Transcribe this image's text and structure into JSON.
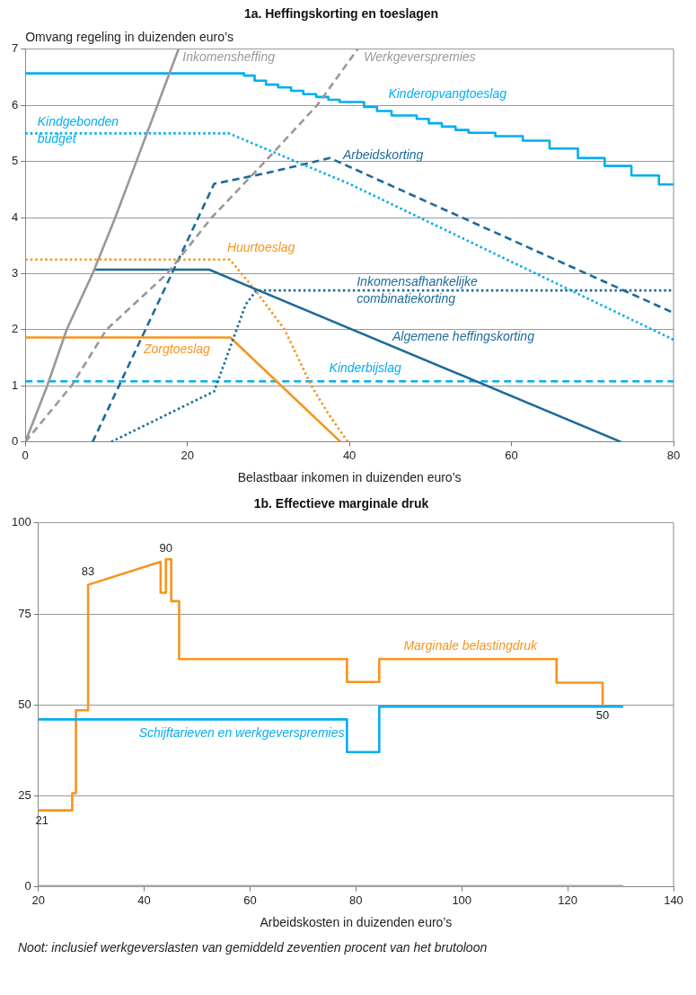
{
  "chart_data": [
    {
      "type": "line",
      "title": "1a. Heffingskorting en toeslagen",
      "ylabel": "Omvang regeling in duizenden euro’s",
      "xlabel": "Belastbaar inkomen in duizenden euro’s",
      "xlim": [
        0,
        80
      ],
      "xticks": [
        0,
        20,
        40,
        60,
        80
      ],
      "ylim": [
        0,
        7
      ],
      "yticks": [
        0,
        1,
        2,
        3,
        4,
        5,
        6,
        7
      ],
      "grid": "y",
      "marker": "none",
      "series": [
        {
          "name": "Inkomensheffing",
          "color": "#999999",
          "line_style": "solid",
          "x": [
            0,
            2.7,
            5.1,
            8.3,
            11.1,
            13.7,
            16.3,
            18.9
          ],
          "values": [
            0,
            1,
            2,
            3,
            4,
            5,
            6,
            7
          ]
        },
        {
          "name": "Werkgeverspremies",
          "color": "#999999",
          "line_style": "dashed",
          "x": [
            0,
            5.7,
            10,
            17.5,
            23,
            29.6,
            36,
            41
          ],
          "values": [
            0,
            1,
            2,
            3,
            4,
            5,
            6,
            7
          ]
        },
        {
          "name": "Kinderopvangtoeslag",
          "type": "step",
          "color": "#00aeef",
          "line_style": "solid",
          "x": [
            0,
            27,
            28.3,
            29.7,
            31.2,
            32.8,
            34.3,
            35.9,
            37.4,
            38.8,
            41.8,
            43.4,
            45.2,
            48.3,
            49.8,
            51.4,
            53.1,
            54.7,
            58,
            61.4,
            64.7,
            68.2,
            71.5,
            74.8,
            78.2,
            80
          ],
          "values": [
            6.57,
            6.53,
            6.44,
            6.37,
            6.32,
            6.26,
            6.2,
            6.15,
            6.1,
            6.06,
            5.97,
            5.9,
            5.82,
            5.76,
            5.68,
            5.62,
            5.56,
            5.51,
            5.45,
            5.37,
            5.23,
            5.06,
            4.92,
            4.75,
            4.59,
            4.59
          ]
        },
        {
          "name": "Kindgebonden budget",
          "color": "#00aeef",
          "line_style": "dotted",
          "x": [
            0,
            25.1,
            40,
            80
          ],
          "values": [
            5.5,
            5.5,
            4.6,
            1.82
          ]
        },
        {
          "name": "Arbeidskorting",
          "color": "#1d6a99",
          "line_style": "dashed",
          "x": [
            8.3,
            23.3,
            30,
            37.6,
            80
          ],
          "values": [
            0,
            4.6,
            4.8,
            5.06,
            2.3
          ]
        },
        {
          "name": "Algemene heffingskorting",
          "color": "#1d6a99",
          "line_style": "solid",
          "x": [
            8.5,
            22.7,
            73.5
          ],
          "values": [
            3.07,
            3.07,
            0
          ]
        },
        {
          "name": "Inkomensafhankelijke combinatiekorting",
          "color": "#1d6a99",
          "line_style": "dotted",
          "x": [
            10.6,
            23.3,
            27.2,
            28.5,
            80
          ],
          "values": [
            0,
            0.9,
            2.45,
            2.7,
            2.7
          ]
        },
        {
          "name": "Huurtoeslag",
          "color": "#f7941d",
          "line_style": "dotted",
          "x": [
            0,
            25.25,
            28.5,
            32,
            35.3,
            37.4,
            39.8
          ],
          "values": [
            3.25,
            3.25,
            2.68,
            2,
            1,
            0.5,
            0
          ]
        },
        {
          "name": "Zorgtoeslag",
          "color": "#f7941d",
          "line_style": "solid",
          "x": [
            0,
            25.3,
            38.9
          ],
          "values": [
            1.86,
            1.86,
            0
          ]
        },
        {
          "name": "Kinderbijslag",
          "color": "#00aeef",
          "line_style": "dashed",
          "x": [
            0,
            80
          ],
          "values": [
            1.08,
            1.08
          ]
        }
      ]
    },
    {
      "type": "line",
      "title": "1b. Effectieve marginale druk",
      "xlabel": "Arbeidskosten in duizenden euro’s",
      "xlim": [
        20,
        140
      ],
      "xticks": [
        20,
        40,
        60,
        80,
        100,
        120,
        140
      ],
      "ylim": [
        0,
        100
      ],
      "yticks": [
        0,
        25,
        50,
        75,
        100
      ],
      "grid": "y",
      "marker": "none",
      "series": [
        {
          "color": "#aaaaaa",
          "line_style": "solid",
          "x": [
            20,
            130.5
          ],
          "values": [
            0,
            0
          ]
        },
        {
          "name": "Schijftarieven en werkgeverspremies",
          "color": "#00aeef",
          "line_style": "solid",
          "x": [
            20,
            78.3,
            78.3,
            84.4,
            84.4,
            130.5
          ],
          "values": [
            46,
            46,
            37,
            37,
            49.5,
            49.5
          ]
        },
        {
          "name": "Marginale belastingdruk",
          "color": "#f7941d",
          "line_style": "solid",
          "x": [
            20,
            26.4,
            26.4,
            27.1,
            27.1,
            29.4,
            29.4,
            43.1,
            43.1,
            44.1,
            44.1,
            45.1,
            45.1,
            46.6,
            46.6,
            78.3,
            78.3,
            84.4,
            84.4,
            117.9,
            117.9,
            126.6,
            126.6
          ],
          "values": [
            21,
            21,
            25.7,
            25.7,
            48.5,
            48.5,
            83,
            89.3,
            80.8,
            80.8,
            90,
            90,
            78.5,
            78.5,
            62.6,
            62.6,
            56.3,
            56.3,
            62.6,
            62.6,
            56.1,
            56.1,
            50
          ]
        }
      ],
      "annotations": [
        {
          "text": "21",
          "x": 20,
          "y": 21
        },
        {
          "text": "83",
          "x": 29.4,
          "y": 83
        },
        {
          "text": "90",
          "x": 44.1,
          "y": 90
        },
        {
          "text": "50",
          "x": 126.6,
          "y": 50
        },
        "Noot: inclusief werkgeverslasten van gemiddeld zeventien procent van het brutoloon"
      ]
    }
  ]
}
